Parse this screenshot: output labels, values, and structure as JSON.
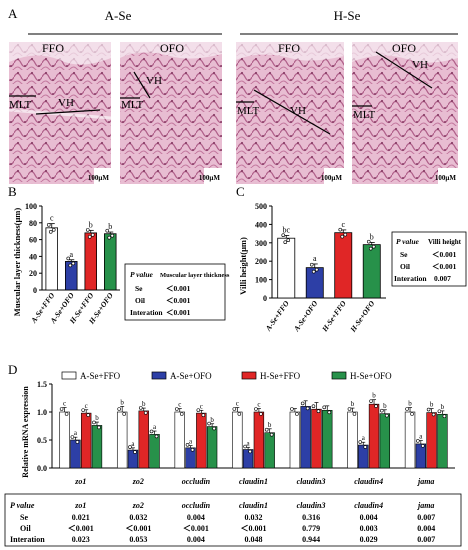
{
  "panelA": {
    "letter": "A",
    "groups": [
      "A-Se",
      "H-Se"
    ],
    "sections": [
      {
        "label": "FFO",
        "marks": [
          "MLT",
          "VH"
        ],
        "scale": "100μM"
      },
      {
        "label": "OFO",
        "marks": [
          "MLT",
          "VH"
        ],
        "scale": "100μM"
      },
      {
        "label": "FFO",
        "marks": [
          "MLT",
          "VH"
        ],
        "scale": "100μM"
      },
      {
        "label": "OFO",
        "marks": [
          "MLT",
          "VH"
        ],
        "scale": "100μM"
      }
    ],
    "colors": {
      "tissue": "#d9a6bf",
      "tissue_dark": "#a8547f",
      "lumen": "#fbf6f8"
    }
  },
  "chart_data": [
    {
      "id": "B",
      "type": "bar",
      "letter": "B",
      "ylabel": "Muscular layer thickness(μm)",
      "ylim": [
        0,
        100
      ],
      "yticks": [
        0,
        20,
        40,
        60,
        80,
        100
      ],
      "categories": [
        "A-Se+FFO",
        "A-Se+OFO",
        "H-Se+FFO",
        "H-Se+OFO"
      ],
      "values": [
        74,
        34,
        68,
        67
      ],
      "errors": [
        5,
        2,
        3,
        2
      ],
      "sig": [
        "c",
        "a",
        "b",
        "b"
      ],
      "colors": [
        "#ffffff",
        "#2d3fa6",
        "#e02626",
        "#27914a"
      ],
      "stats": {
        "header": [
          "P value",
          "Muscular layer thickness"
        ],
        "rows": [
          [
            "Se",
            "＜0.001"
          ],
          [
            "Oil",
            "＜0.001"
          ],
          [
            "Interation",
            "＜0.001"
          ]
        ]
      }
    },
    {
      "id": "C",
      "type": "bar",
      "letter": "C",
      "ylabel": "Villi height(μm)",
      "ylim": [
        0,
        500
      ],
      "yticks": [
        0,
        100,
        200,
        300,
        400,
        500
      ],
      "categories": [
        "A-Se+FFO",
        "A-Se+OFO",
        "H-Se+FFO",
        "H-Se+OFO"
      ],
      "values": [
        325,
        165,
        355,
        290
      ],
      "errors": [
        15,
        20,
        15,
        12
      ],
      "sig": [
        "bc",
        "a",
        "c",
        "b"
      ],
      "colors": [
        "#ffffff",
        "#2d3fa6",
        "#e02626",
        "#27914a"
      ],
      "stats": {
        "header": [
          "P value",
          "Villi height"
        ],
        "rows": [
          [
            "Se",
            "＜0.001"
          ],
          [
            "Oil",
            "＜0.001"
          ],
          [
            "Interation",
            "0.007"
          ]
        ]
      }
    },
    {
      "id": "D",
      "type": "bar",
      "letter": "D",
      "ylabel": "Relative mRNA expression",
      "ylim": [
        0,
        1.5
      ],
      "yticks": [
        0.0,
        0.5,
        1.0,
        1.5
      ],
      "categories": [
        "zo1",
        "zo2",
        "occludin",
        "claudin1",
        "claudin3",
        "claudin4",
        "jama"
      ],
      "series": [
        {
          "name": "A-Se+FFO",
          "color": "#ffffff",
          "values": [
            1.0,
            1.0,
            1.0,
            1.0,
            1.0,
            1.0,
            1.0
          ],
          "errors": [
            0.08,
            0.1,
            0.06,
            0.08,
            0.06,
            0.07,
            0.08
          ],
          "sig": [
            "c",
            "b",
            "c",
            "c",
            "",
            "b",
            "b"
          ]
        },
        {
          "name": "A-Se+OFO",
          "color": "#2d3fa6",
          "values": [
            0.5,
            0.32,
            0.36,
            0.33,
            1.1,
            0.41,
            0.43
          ],
          "errors": [
            0.05,
            0.04,
            0.04,
            0.04,
            0.1,
            0.05,
            0.06
          ],
          "sig": [
            "a",
            "a",
            "a",
            "a",
            "",
            "a",
            "a"
          ]
        },
        {
          "name": "H-Se+FFO",
          "color": "#e02626",
          "values": [
            0.98,
            1.02,
            0.98,
            1.0,
            1.05,
            1.14,
            0.99
          ],
          "errors": [
            0.06,
            0.05,
            0.05,
            0.06,
            0.12,
            0.08,
            0.07
          ],
          "sig": [
            "c",
            "b",
            "c",
            "c",
            "",
            "b",
            "b"
          ]
        },
        {
          "name": "H-Se+OFO",
          "color": "#27914a",
          "values": [
            0.76,
            0.6,
            0.74,
            0.63,
            1.03,
            0.97,
            0.96
          ],
          "errors": [
            0.06,
            0.06,
            0.05,
            0.07,
            0.08,
            0.07,
            0.06
          ],
          "sig": [
            "b",
            "a",
            "b",
            "b",
            "",
            "b",
            "b"
          ]
        }
      ],
      "stats": {
        "header": "P value",
        "rows": [
          {
            "label": "Se",
            "values": [
              "0.021",
              "0.032",
              "0.004",
              "0.032",
              "0.316",
              "0.004",
              "0.007"
            ]
          },
          {
            "label": "Oil",
            "values": [
              "＜0.001",
              "＜0.001",
              "＜0.001",
              "＜0.001",
              "0.779",
              "0.003",
              "0.004"
            ]
          },
          {
            "label": "Interation",
            "values": [
              "0.023",
              "0.053",
              "0.004",
              "0.048",
              "0.944",
              "0.029",
              "0.007"
            ]
          }
        ]
      }
    }
  ]
}
